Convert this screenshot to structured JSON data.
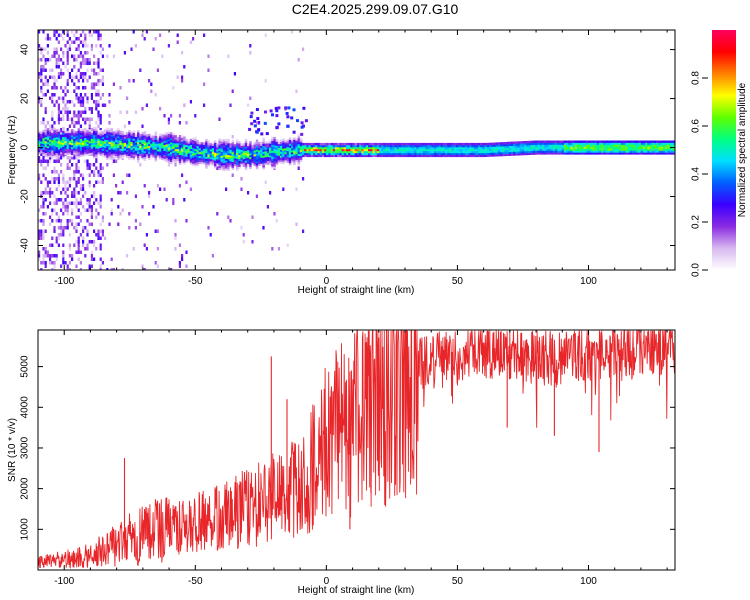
{
  "title": "C2E4.2025.299.09.07.G10",
  "colors": {
    "snr_line": "#e8262a",
    "axis": "#000000"
  },
  "chart_data": [
    {
      "type": "heatmap",
      "name": "spectrogram",
      "xlabel": "Height of straight line (km)",
      "ylabel": "Frequency (Hz)",
      "xlim": [
        -110,
        133
      ],
      "ylim": [
        -50,
        48
      ],
      "xticks": [
        -100,
        -50,
        0,
        50,
        100
      ],
      "yticks": [
        -40,
        -20,
        0,
        20,
        40
      ],
      "center_frequency_trend": {
        "x": [
          -110,
          -90,
          -75,
          -60,
          -50,
          -40,
          -30,
          -20,
          -10,
          0,
          10,
          20,
          40,
          60,
          80,
          100,
          133
        ],
        "y": [
          2,
          2,
          1,
          0,
          -2,
          -3,
          -3,
          -2,
          -1,
          -1,
          -1,
          -1,
          -1,
          -1,
          0,
          0,
          0
        ]
      },
      "colorbar": {
        "label": "Normalized spectral amplitude",
        "range": [
          0.0,
          1.0
        ],
        "ticks": [
          0.0,
          0.2,
          0.4,
          0.6,
          0.8
        ],
        "colormap": [
          "#ffffff",
          "#d8b8f0",
          "#8a2be2",
          "#3a00ff",
          "#0060ff",
          "#00e0ff",
          "#00ff80",
          "#60ff00",
          "#ffff00",
          "#ff8000",
          "#ff0000",
          "#ff0060"
        ]
      }
    },
    {
      "type": "line",
      "name": "snr",
      "xlabel": "Height of straight line (km)",
      "ylabel": "SNR (10 * v/v)",
      "xlim": [
        -110,
        133
      ],
      "ylim": [
        0,
        5900
      ],
      "xticks": [
        -100,
        -50,
        0,
        50,
        100
      ],
      "yticks": [
        1000,
        2000,
        3000,
        4000,
        5000
      ],
      "trend": {
        "x": [
          -110,
          -100,
          -90,
          -80,
          -70,
          -60,
          -50,
          -40,
          -30,
          -20,
          -10,
          -5,
          0,
          5,
          10,
          15,
          20,
          25,
          30,
          35,
          40,
          50,
          60,
          70,
          80,
          90,
          100,
          110,
          120,
          133
        ],
        "y": [
          200,
          250,
          350,
          650,
          850,
          1000,
          1150,
          1300,
          1550,
          1750,
          2000,
          2600,
          3100,
          3500,
          3550,
          3900,
          4200,
          4400,
          4750,
          5050,
          5150,
          5200,
          5400,
          5350,
          5250,
          5150,
          5350,
          5400,
          5450,
          5500
        ]
      },
      "spikes": [
        {
          "x": -77,
          "y": 2750
        },
        {
          "x": -21,
          "y": 5250
        },
        {
          "x": -15,
          "y": 4200
        },
        {
          "x": 9,
          "y": 1000
        },
        {
          "x": 17,
          "y": 1900
        },
        {
          "x": 69,
          "y": 3500
        },
        {
          "x": 87,
          "y": 3300
        },
        {
          "x": 104,
          "y": 2900
        }
      ]
    }
  ]
}
